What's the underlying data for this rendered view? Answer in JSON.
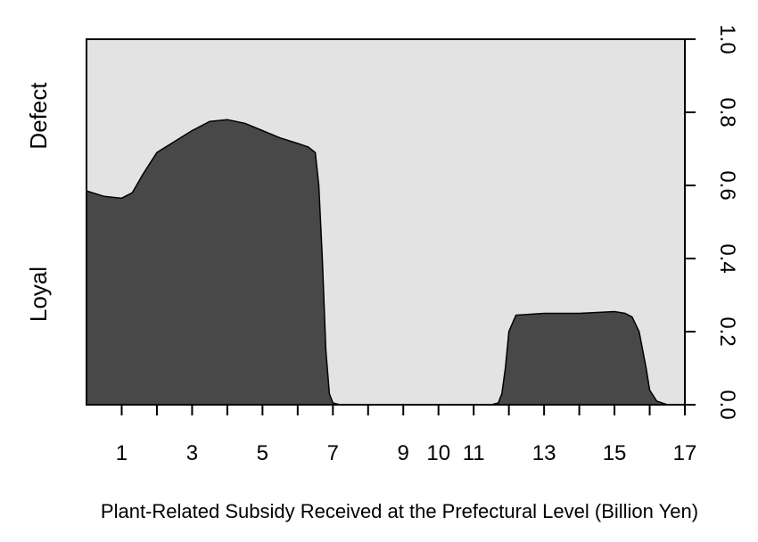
{
  "chart_data": {
    "type": "area",
    "subtype": "conditional-density",
    "xlabel": "Plant-Related Subsidy Received at the Prefectural Level (Billion Yen)",
    "x_ticks": [
      1,
      3,
      5,
      7,
      9,
      10,
      11,
      13,
      15,
      17
    ],
    "xlim": [
      0,
      17
    ],
    "y_right_ticks": [
      "0.0",
      "0.2",
      "0.4",
      "0.6",
      "0.8",
      "1.0"
    ],
    "ylim": [
      0,
      1
    ],
    "categories": [
      "Loyal",
      "Defect"
    ],
    "colors": {
      "Loyal": "#484848",
      "Defect": "#e3e3e3"
    },
    "series": [
      {
        "name": "Loyal",
        "x": [
          0,
          0.5,
          1,
          1.3,
          1.6,
          2,
          2.5,
          3,
          3.5,
          4,
          4.5,
          5,
          5.5,
          6,
          6.3,
          6.5,
          6.6,
          6.7,
          6.8,
          6.9,
          7,
          7.2,
          8,
          9,
          10,
          11,
          11.5,
          11.7,
          11.8,
          11.9,
          12,
          12.2,
          13,
          14,
          15,
          15.3,
          15.5,
          15.7,
          15.9,
          16,
          16.2,
          16.5,
          17
        ],
        "values": [
          0.585,
          0.57,
          0.565,
          0.58,
          0.63,
          0.69,
          0.72,
          0.75,
          0.775,
          0.78,
          0.77,
          0.75,
          0.73,
          0.715,
          0.705,
          0.69,
          0.6,
          0.4,
          0.15,
          0.03,
          0.005,
          0.0,
          0.0,
          0.0,
          0.0,
          0.0,
          0.0,
          0.005,
          0.03,
          0.1,
          0.2,
          0.245,
          0.25,
          0.25,
          0.255,
          0.25,
          0.24,
          0.2,
          0.1,
          0.04,
          0.01,
          0.0,
          0.0
        ]
      }
    ]
  }
}
